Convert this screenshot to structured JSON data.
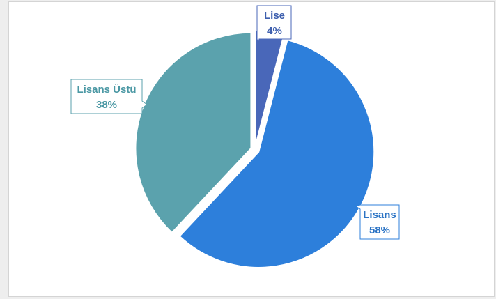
{
  "chart_data": {
    "type": "pie",
    "title": "",
    "slices": [
      {
        "name": "Lise",
        "value": 4,
        "label": "4%",
        "color": "#4967b9"
      },
      {
        "name": "Lisans",
        "value": 58,
        "label": "58%",
        "color": "#2d7fdb"
      },
      {
        "name": "Lisans Üstü",
        "value": 38,
        "label": "38%",
        "color": "#5ba2ad"
      }
    ],
    "exploded": true,
    "legend": "none",
    "data_labels": "callout"
  }
}
